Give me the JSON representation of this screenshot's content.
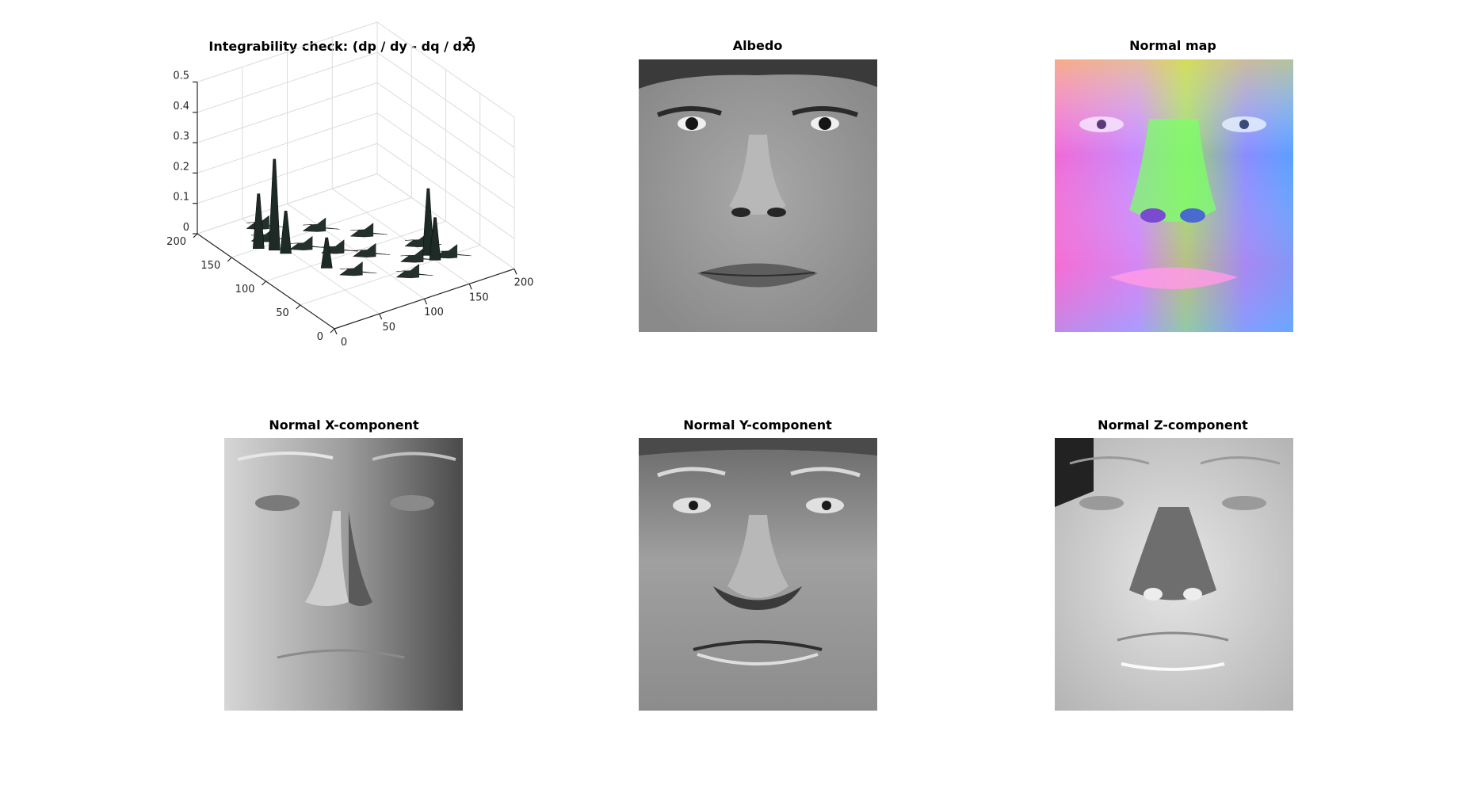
{
  "figure": {
    "panels": [
      {
        "id": "integrability",
        "title": "Integrability check: (dp / dy - dq / dx)",
        "title_sup": "2"
      },
      {
        "id": "albedo",
        "title": "Albedo"
      },
      {
        "id": "normal_map",
        "title": "Normal map"
      },
      {
        "id": "normal_x",
        "title": "Normal X-component"
      },
      {
        "id": "normal_y",
        "title": "Normal Y-component"
      },
      {
        "id": "normal_z",
        "title": "Normal Z-component"
      }
    ]
  },
  "chart_data": [
    {
      "type": "surface",
      "title": "Integrability check: (dp / dy - dq / dx)",
      "title_superscript": "2",
      "xlim": [
        0,
        200
      ],
      "ylim": [
        0,
        200
      ],
      "zlim": [
        0,
        0.5
      ],
      "x_ticks": [
        "0",
        "50",
        "100",
        "150",
        "200"
      ],
      "y_ticks": [
        "0",
        "50",
        "100",
        "150",
        "200"
      ],
      "z_ticks": [
        "0",
        "0.1",
        "0.2",
        "0.3",
        "0.4",
        "0.5"
      ],
      "grid": true,
      "colormap": "dark",
      "peaks": [
        {
          "x": 40,
          "y": 140,
          "z": 0.3
        },
        {
          "x": 30,
          "y": 150,
          "z": 0.18
        },
        {
          "x": 45,
          "y": 130,
          "z": 0.14
        },
        {
          "x": 150,
          "y": 60,
          "z": 0.22
        },
        {
          "x": 150,
          "y": 50,
          "z": 0.14
        },
        {
          "x": 60,
          "y": 90,
          "z": 0.1
        }
      ]
    },
    {
      "type": "image",
      "title": "Albedo",
      "colormap": "gray"
    },
    {
      "type": "image",
      "title": "Normal map",
      "colormap": "rgb"
    },
    {
      "type": "image",
      "title": "Normal X-component",
      "colormap": "gray"
    },
    {
      "type": "image",
      "title": "Normal Y-component",
      "colormap": "gray"
    },
    {
      "type": "image",
      "title": "Normal Z-component",
      "colormap": "gray"
    }
  ]
}
